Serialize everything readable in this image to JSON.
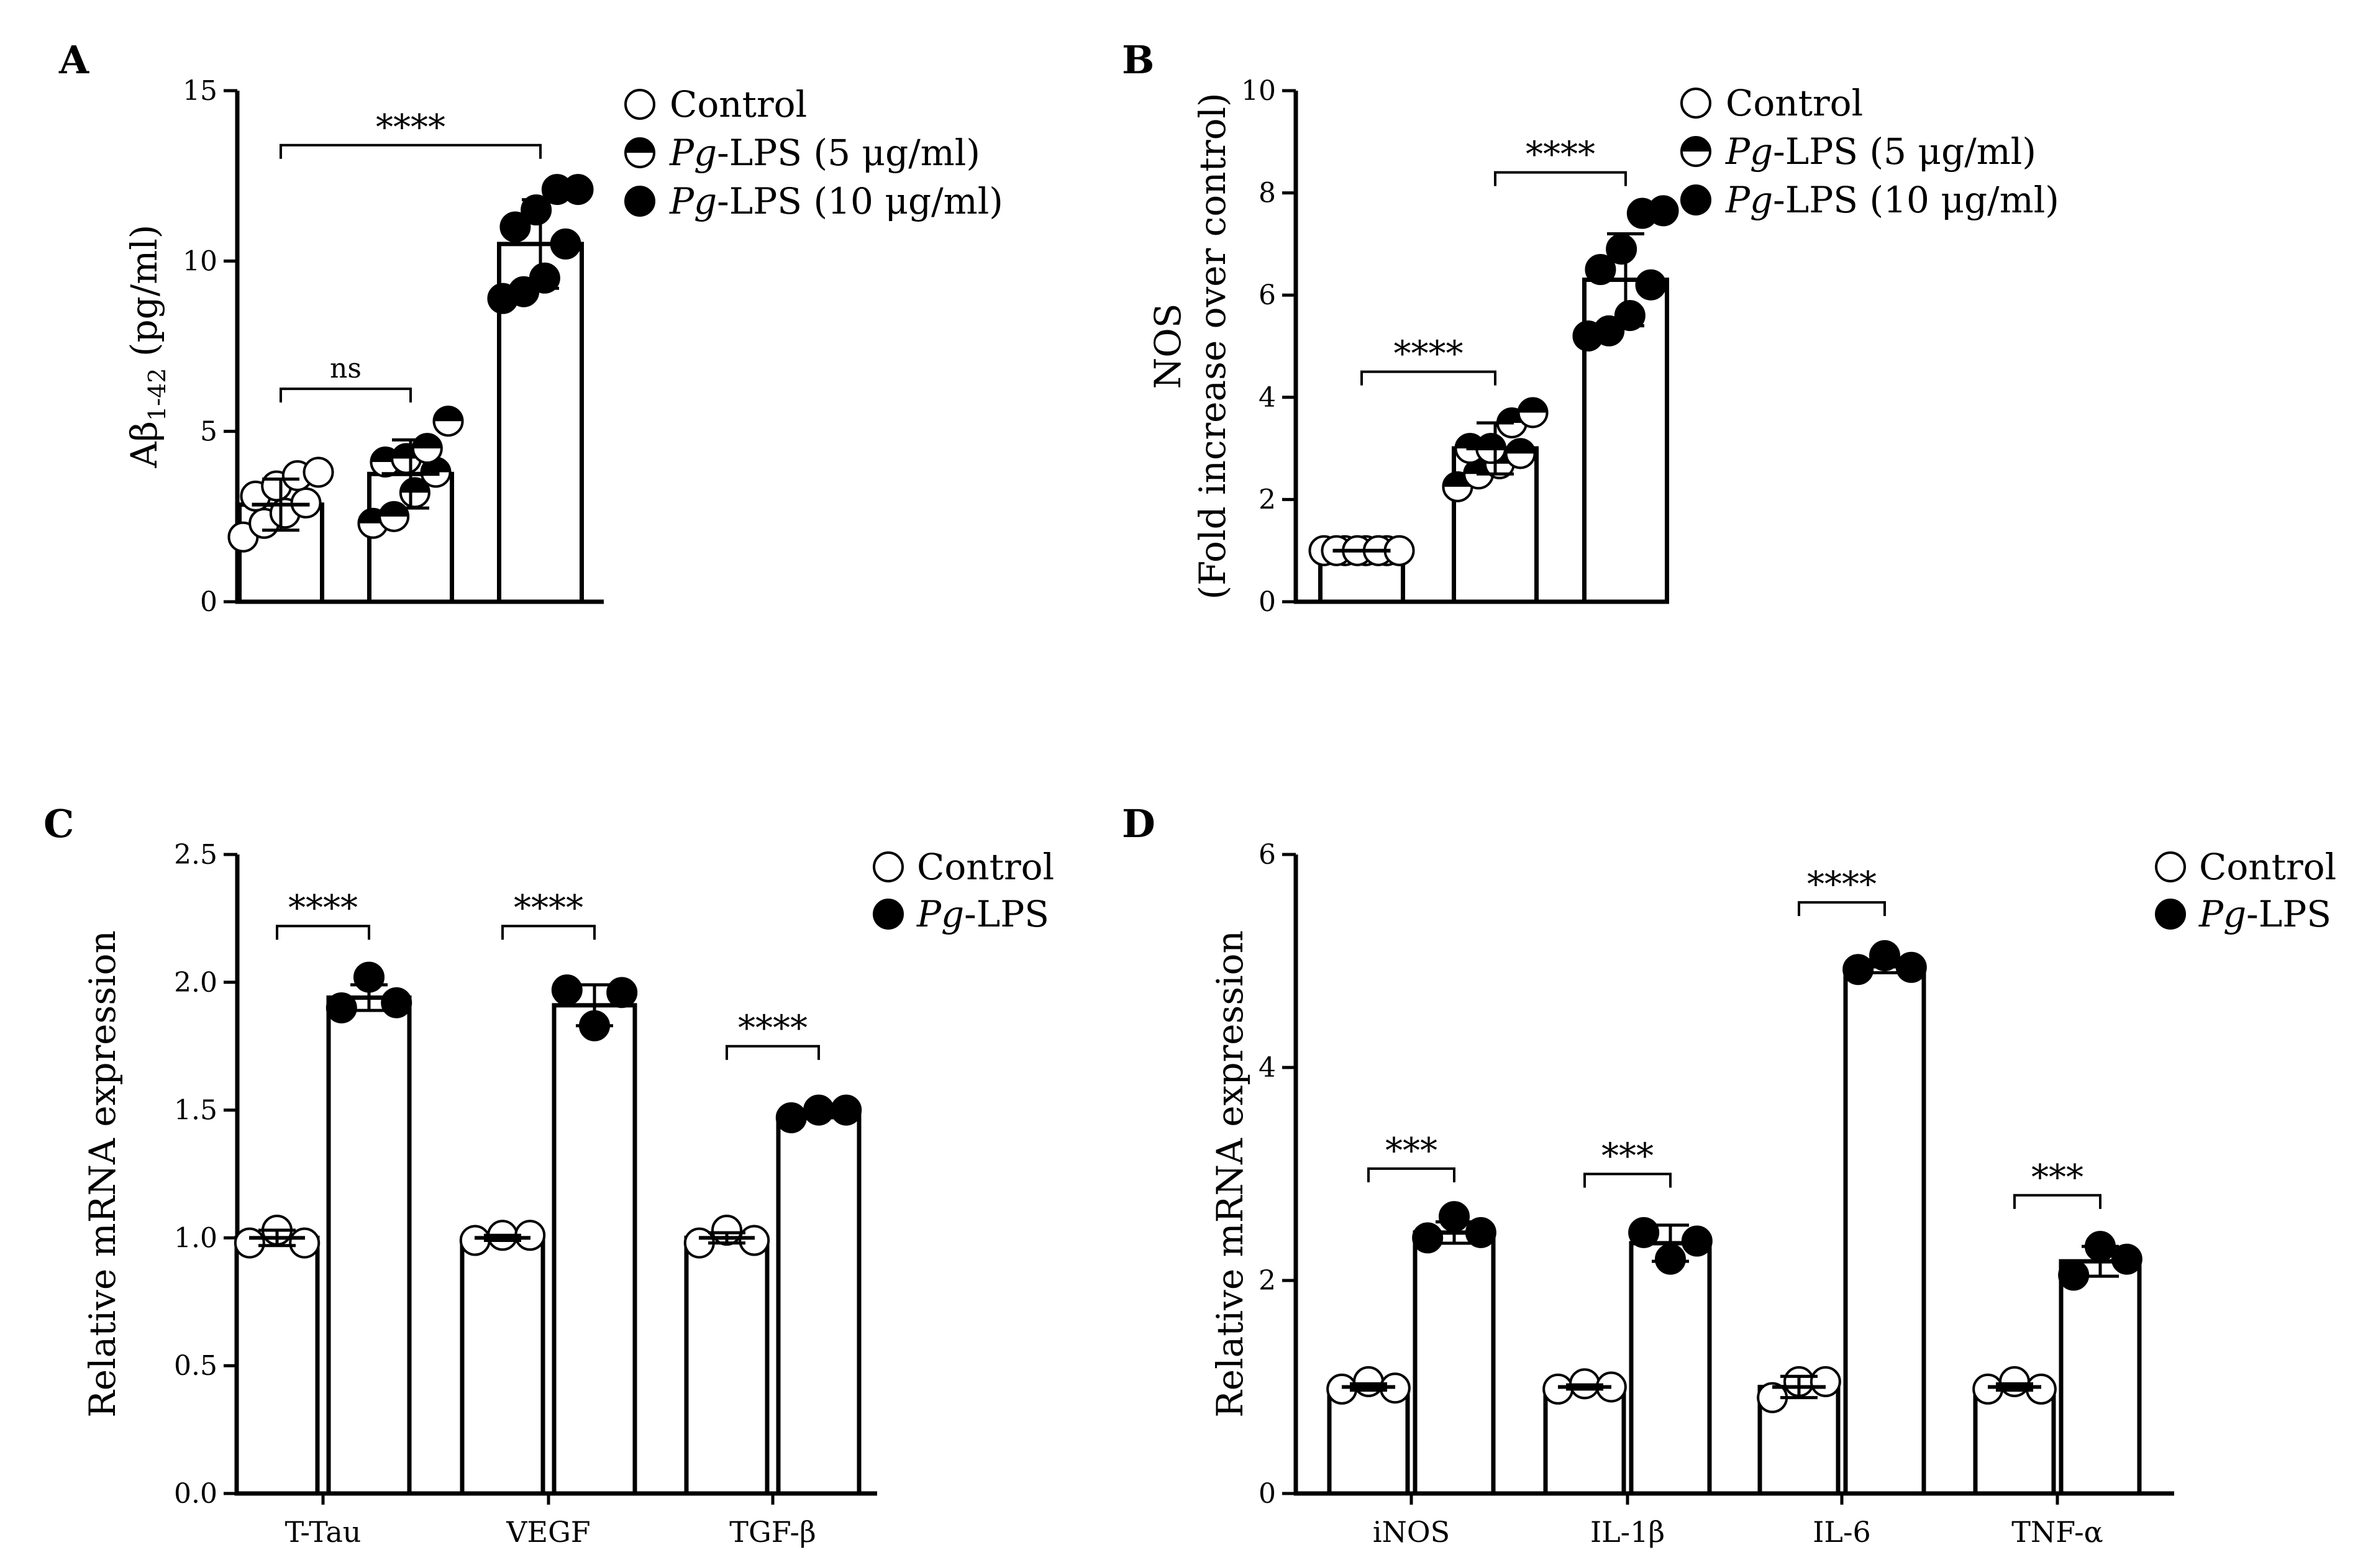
{
  "figure": {
    "panels": [
      {
        "label": "A",
        "chart_data": {
          "type": "bar",
          "ylabel": "Aβ1-42 (pg/ml)",
          "ylabel_main": "Aβ",
          "ylabel_sub": "1-42",
          "ylabel_rest": " (pg/ml)",
          "ylabel_line2": "",
          "ylim": [
            0,
            15
          ],
          "yticks": [
            0,
            5,
            10,
            15
          ],
          "ytick_labels": [
            "0",
            "5",
            "10",
            "15"
          ],
          "grid": false,
          "legend_placement": "top-right",
          "legend": [
            {
              "style": "open",
              "italic": "",
              "text": "Control"
            },
            {
              "style": "half",
              "italic": "Pg",
              "text": "-LPS (5 μg/ml)"
            },
            {
              "style": "filled",
              "italic": "Pg",
              "text": "-LPS (10 μg/ml)"
            }
          ],
          "groups": [
            {
              "label": "",
              "bars": [
                {
                  "series": "Control",
                  "style": "open",
                  "value": 2.85,
                  "err": 0.75,
                  "points": [
                    1.9,
                    2.3,
                    2.6,
                    2.9,
                    3.1,
                    3.4,
                    3.7,
                    3.8
                  ]
                },
                {
                  "series": "Pg-LPS (5 μg/ml)",
                  "style": "half",
                  "value": 3.75,
                  "err": 1.0,
                  "points": [
                    2.3,
                    2.5,
                    3.2,
                    3.8,
                    4.1,
                    4.2,
                    4.5,
                    5.3
                  ]
                },
                {
                  "series": "Pg-LPS (10 μg/ml)",
                  "style": "filled",
                  "value": 10.5,
                  "err": 1.3,
                  "points": [
                    8.9,
                    9.1,
                    9.5,
                    10.5,
                    11.0,
                    11.5,
                    12.1,
                    12.1
                  ]
                }
              ]
            }
          ],
          "brackets": [
            {
              "from": 0,
              "to": 1,
              "level": 6.25,
              "text": "ns",
              "small": true
            },
            {
              "from": 0,
              "to": 2,
              "level": 13.4,
              "text": "****",
              "small": false
            }
          ]
        }
      },
      {
        "label": "B",
        "chart_data": {
          "type": "bar",
          "ylabel": "NOS (Fold increase over control)",
          "ylabel_main": "NOS",
          "ylabel_sub": "",
          "ylabel_rest": "",
          "ylabel_line2": "(Fold increase over control)",
          "ylim": [
            0,
            10
          ],
          "yticks": [
            0,
            2,
            4,
            6,
            8,
            10
          ],
          "ytick_labels": [
            "0",
            "2",
            "4",
            "6",
            "8",
            "10"
          ],
          "grid": false,
          "legend_placement": "top-right",
          "legend": [
            {
              "style": "open",
              "italic": "",
              "text": "Control"
            },
            {
              "style": "half",
              "italic": "Pg",
              "text": "-LPS (5 μg/ml)"
            },
            {
              "style": "filled",
              "italic": "Pg",
              "text": "-LPS (10 μg/ml)"
            }
          ],
          "groups": [
            {
              "label": "",
              "bars": [
                {
                  "series": "Control",
                  "style": "open",
                  "value": 1.0,
                  "err": 0,
                  "points": [
                    1.0,
                    1.0,
                    1.0,
                    1.0,
                    1.0,
                    1.0,
                    1.0,
                    1.0
                  ]
                },
                {
                  "series": "Pg-LPS (5 μg/ml)",
                  "style": "half",
                  "value": 3.0,
                  "err": 0.5,
                  "points": [
                    2.25,
                    2.5,
                    2.7,
                    2.9,
                    3.0,
                    3.0,
                    3.5,
                    3.7
                  ]
                },
                {
                  "series": "Pg-LPS (10 μg/ml)",
                  "style": "filled",
                  "value": 6.3,
                  "err": 0.9,
                  "points": [
                    5.2,
                    5.3,
                    5.6,
                    6.2,
                    6.5,
                    6.9,
                    7.6,
                    7.65
                  ]
                }
              ]
            }
          ],
          "brackets": [
            {
              "from": 1,
              "to": 2,
              "level": 8.4,
              "text": "****",
              "small": false
            },
            {
              "from": 0,
              "to": 1,
              "level": 4.5,
              "text": "****",
              "small": false
            }
          ]
        }
      },
      {
        "label": "C",
        "chart_data": {
          "type": "bar",
          "ylabel": "Relative mRNA expression",
          "ylabel_main": "Relative mRNA expression",
          "ylabel_sub": "",
          "ylabel_rest": "",
          "ylabel_line2": "",
          "ylim": [
            0,
            2.5
          ],
          "yticks": [
            0,
            0.5,
            1.0,
            1.5,
            2.0,
            2.5
          ],
          "ytick_labels": [
            "0.0",
            "0.5",
            "1.0",
            "1.5",
            "2.0",
            "2.5"
          ],
          "grid": false,
          "legend_placement": "top-right",
          "legend": [
            {
              "style": "open",
              "italic": "",
              "text": "Control"
            },
            {
              "style": "filled",
              "italic": "Pg",
              "text": "-LPS"
            }
          ],
          "groups": [
            {
              "label": "T-Tau",
              "bars": [
                {
                  "series": "Control",
                  "style": "open",
                  "value": 1.0,
                  "err": 0.03,
                  "points": [
                    0.98,
                    1.03,
                    0.98
                  ]
                },
                {
                  "series": "Pg-LPS",
                  "style": "filled",
                  "value": 1.94,
                  "err": 0.05,
                  "points": [
                    1.9,
                    2.02,
                    1.92
                  ]
                }
              ]
            },
            {
              "label": "VEGF",
              "bars": [
                {
                  "series": "Control",
                  "style": "open",
                  "value": 1.0,
                  "err": 0.01,
                  "points": [
                    0.99,
                    1.01,
                    1.01
                  ]
                },
                {
                  "series": "Pg-LPS",
                  "style": "filled",
                  "value": 1.91,
                  "err": 0.08,
                  "points": [
                    1.97,
                    1.83,
                    1.96
                  ]
                }
              ]
            },
            {
              "label": "TGF-β",
              "bars": [
                {
                  "series": "Control",
                  "style": "open",
                  "value": 1.0,
                  "err": 0.02,
                  "points": [
                    0.98,
                    1.03,
                    0.99
                  ]
                },
                {
                  "series": "Pg-LPS",
                  "style": "filled",
                  "value": 1.48,
                  "err": 0.01,
                  "points": [
                    1.47,
                    1.5,
                    1.5
                  ]
                }
              ]
            }
          ],
          "brackets": [
            {
              "group": 0,
              "level": 2.22,
              "text": "****",
              "small": false
            },
            {
              "group": 1,
              "level": 2.22,
              "text": "****",
              "small": false
            },
            {
              "group": 2,
              "level": 1.75,
              "text": "****",
              "small": false
            }
          ]
        }
      },
      {
        "label": "D",
        "chart_data": {
          "type": "bar",
          "ylabel": "Relative mRNA expression",
          "ylabel_main": "Relative mRNA expression",
          "ylabel_sub": "",
          "ylabel_rest": "",
          "ylabel_line2": "",
          "ylim": [
            0,
            6
          ],
          "yticks": [
            0,
            2,
            4,
            6
          ],
          "ytick_labels": [
            "0",
            "2",
            "4",
            "6"
          ],
          "grid": false,
          "legend_placement": "top-right",
          "legend": [
            {
              "style": "open",
              "italic": "",
              "text": "Control"
            },
            {
              "style": "filled",
              "italic": "Pg",
              "text": "-LPS"
            }
          ],
          "groups": [
            {
              "label": "iNOS",
              "bars": [
                {
                  "series": "Control",
                  "style": "open",
                  "value": 1.0,
                  "err": 0.03,
                  "points": [
                    0.98,
                    1.05,
                    0.99
                  ]
                },
                {
                  "series": "Pg-LPS",
                  "style": "filled",
                  "value": 2.45,
                  "err": 0.1,
                  "points": [
                    2.4,
                    2.6,
                    2.45
                  ]
                }
              ]
            },
            {
              "label": "IL-1β",
              "bars": [
                {
                  "series": "Control",
                  "style": "open",
                  "value": 1.0,
                  "err": 0.02,
                  "points": [
                    0.98,
                    1.03,
                    1.0
                  ]
                },
                {
                  "series": "Pg-LPS",
                  "style": "filled",
                  "value": 2.35,
                  "err": 0.17,
                  "points": [
                    2.45,
                    2.2,
                    2.37
                  ]
                }
              ]
            },
            {
              "label": "IL-6",
              "bars": [
                {
                  "series": "Control",
                  "style": "open",
                  "value": 1.0,
                  "err": 0.1,
                  "points": [
                    0.9,
                    1.05,
                    1.05
                  ]
                },
                {
                  "series": "Pg-LPS",
                  "style": "filled",
                  "value": 4.95,
                  "err": 0.06,
                  "points": [
                    4.92,
                    5.05,
                    4.94
                  ]
                }
              ]
            },
            {
              "label": "TNF-α",
              "bars": [
                {
                  "series": "Control",
                  "style": "open",
                  "value": 1.0,
                  "err": 0.03,
                  "points": [
                    0.98,
                    1.05,
                    0.98
                  ]
                },
                {
                  "series": "Pg-LPS",
                  "style": "filled",
                  "value": 2.18,
                  "err": 0.14,
                  "points": [
                    2.05,
                    2.32,
                    2.2
                  ]
                }
              ]
            }
          ],
          "brackets": [
            {
              "group": 0,
              "level": 3.05,
              "text": "***",
              "small": false
            },
            {
              "group": 1,
              "level": 3.0,
              "text": "***",
              "small": false
            },
            {
              "group": 2,
              "level": 5.55,
              "text": "****",
              "small": false
            },
            {
              "group": 3,
              "level": 2.8,
              "text": "***",
              "small": false
            }
          ]
        }
      }
    ]
  }
}
